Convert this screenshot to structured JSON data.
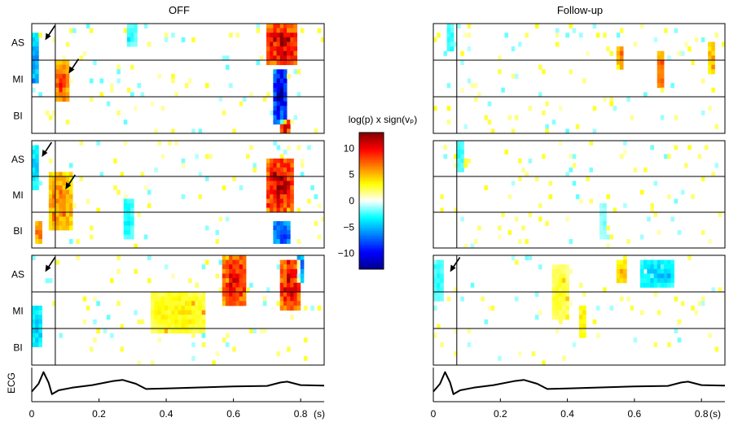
{
  "chart_data": {
    "type": "heatmap",
    "columns": [
      {
        "title": "OFF",
        "panels": [
          {
            "row_labels": [
              "AS",
              "MI",
              "BI"
            ],
            "cursor_time_s": 0.07,
            "arrows": [
              {
                "t": 0.04,
                "region": "AS"
              },
              {
                "t": 0.11,
                "region": "MI"
              }
            ],
            "blobs": [
              {
                "t": [
                  0.07,
                  0.11
                ],
                "rows": [
                  0.35,
                  0.72
                ],
                "value": 9
              },
              {
                "t": [
                  0.7,
                  0.79
                ],
                "rows": [
                  0.0,
                  0.38
                ],
                "value": 12
              },
              {
                "t": [
                  0.72,
                  0.76
                ],
                "rows": [
                  0.42,
                  0.9
                ],
                "value": -12
              },
              {
                "t": [
                  0.74,
                  0.77
                ],
                "rows": [
                  0.88,
                  1.0
                ],
                "value": 12
              },
              {
                "t": [
                  0.0,
                  0.02
                ],
                "rows": [
                  0.1,
                  0.55
                ],
                "value": -7
              },
              {
                "t": [
                  0.28,
                  0.31
                ],
                "rows": [
                  0.0,
                  0.2
                ],
                "value": -3
              }
            ]
          },
          {
            "row_labels": [
              "AS",
              "MI",
              "BI"
            ],
            "cursor_time_s": 0.07,
            "arrows": [
              {
                "t": 0.03,
                "region": "AS"
              },
              {
                "t": 0.1,
                "region": "MI"
              }
            ],
            "blobs": [
              {
                "t": [
                  0.05,
                  0.12
                ],
                "rows": [
                  0.3,
                  0.85
                ],
                "value": 7
              },
              {
                "t": [
                  0.7,
                  0.78
                ],
                "rows": [
                  0.18,
                  0.65
                ],
                "value": 12
              },
              {
                "t": [
                  0.72,
                  0.77
                ],
                "rows": [
                  0.75,
                  0.95
                ],
                "value": -10
              },
              {
                "t": [
                  0.01,
                  0.03
                ],
                "rows": [
                  0.75,
                  0.95
                ],
                "value": 8
              },
              {
                "t": [
                  0.0,
                  0.02
                ],
                "rows": [
                  0.05,
                  0.45
                ],
                "value": -5
              },
              {
                "t": [
                  0.27,
                  0.3
                ],
                "rows": [
                  0.55,
                  0.9
                ],
                "value": -4
              }
            ]
          },
          {
            "row_labels": [
              "AS",
              "MI",
              "BI"
            ],
            "cursor_time_s": 0.07,
            "arrows": [
              {
                "t": 0.04,
                "region": "AS"
              }
            ],
            "blobs": [
              {
                "t": [
                  0.57,
                  0.64
                ],
                "rows": [
                  0.0,
                  0.45
                ],
                "value": 11
              },
              {
                "t": [
                  0.74,
                  0.8
                ],
                "rows": [
                  0.05,
                  0.5
                ],
                "value": 11
              },
              {
                "t": [
                  0.79,
                  0.81
                ],
                "rows": [
                  0.0,
                  0.25
                ],
                "value": -8
              },
              {
                "t": [
                  0.0,
                  0.03
                ],
                "rows": [
                  0.45,
                  0.85
                ],
                "value": -5
              },
              {
                "t": [
                  0.35,
                  0.52
                ],
                "rows": [
                  0.35,
                  0.7
                ],
                "value": 4
              }
            ]
          }
        ],
        "ecg": [
          [
            0,
            0.2
          ],
          [
            0.02,
            0.5
          ],
          [
            0.035,
            0.95
          ],
          [
            0.05,
            0.55
          ],
          [
            0.06,
            0.1
          ],
          [
            0.08,
            0.25
          ],
          [
            0.12,
            0.35
          ],
          [
            0.18,
            0.45
          ],
          [
            0.24,
            0.6
          ],
          [
            0.27,
            0.65
          ],
          [
            0.31,
            0.5
          ],
          [
            0.34,
            0.3
          ],
          [
            0.4,
            0.32
          ],
          [
            0.5,
            0.36
          ],
          [
            0.6,
            0.4
          ],
          [
            0.7,
            0.42
          ],
          [
            0.74,
            0.55
          ],
          [
            0.76,
            0.58
          ],
          [
            0.8,
            0.45
          ],
          [
            0.87,
            0.43
          ]
        ]
      },
      {
        "title": "Follow-up",
        "panels": [
          {
            "row_labels": [
              "AS",
              "MI",
              "BI"
            ],
            "cursor_time_s": 0.07,
            "arrows": [],
            "blobs": [
              {
                "t": [
                  0.67,
                  0.69
                ],
                "rows": [
                  0.25,
                  0.6
                ],
                "value": 9
              },
              {
                "t": [
                  0.55,
                  0.57
                ],
                "rows": [
                  0.2,
                  0.4
                ],
                "value": 7
              },
              {
                "t": [
                  0.82,
                  0.84
                ],
                "rows": [
                  0.15,
                  0.45
                ],
                "value": 6
              },
              {
                "t": [
                  0.04,
                  0.06
                ],
                "rows": [
                  0.0,
                  0.25
                ],
                "value": -3
              },
              {
                "t": [
                  0.87,
                  0.88
                ],
                "rows": [
                  0.4,
                  0.9
                ],
                "value": 5
              }
            ]
          },
          {
            "row_labels": [
              "AS",
              "MI",
              "BI"
            ],
            "cursor_time_s": 0.07,
            "arrows": [],
            "blobs": [
              {
                "t": [
                  0.07,
                  0.09
                ],
                "rows": [
                  0.0,
                  0.3
                ],
                "value": -3
              },
              {
                "t": [
                  0.5,
                  0.52
                ],
                "rows": [
                  0.6,
                  0.9
                ],
                "value": -2
              }
            ]
          },
          {
            "row_labels": [
              "AS",
              "MI",
              "BI"
            ],
            "cursor_time_s": 0.07,
            "arrows": [
              {
                "t": 0.05,
                "region": "AS"
              }
            ],
            "blobs": [
              {
                "t": [
                  0.62,
                  0.72
                ],
                "rows": [
                  0.05,
                  0.3
                ],
                "value": -5
              },
              {
                "t": [
                  0.55,
                  0.58
                ],
                "rows": [
                  0.05,
                  0.25
                ],
                "value": 6
              },
              {
                "t": [
                  0.35,
                  0.4
                ],
                "rows": [
                  0.1,
                  0.6
                ],
                "value": 3
              },
              {
                "t": [
                  0.43,
                  0.46
                ],
                "rows": [
                  0.45,
                  0.75
                ],
                "value": 4
              },
              {
                "t": [
                  0.0,
                  0.03
                ],
                "rows": [
                  0.05,
                  0.4
                ],
                "value": -3
              }
            ]
          }
        ],
        "ecg": [
          [
            0,
            0.2
          ],
          [
            0.02,
            0.5
          ],
          [
            0.035,
            0.95
          ],
          [
            0.05,
            0.55
          ],
          [
            0.06,
            0.1
          ],
          [
            0.08,
            0.25
          ],
          [
            0.12,
            0.35
          ],
          [
            0.18,
            0.45
          ],
          [
            0.24,
            0.6
          ],
          [
            0.27,
            0.65
          ],
          [
            0.31,
            0.5
          ],
          [
            0.34,
            0.3
          ],
          [
            0.4,
            0.32
          ],
          [
            0.5,
            0.36
          ],
          [
            0.6,
            0.4
          ],
          [
            0.7,
            0.42
          ],
          [
            0.74,
            0.55
          ],
          [
            0.76,
            0.58
          ],
          [
            0.8,
            0.45
          ],
          [
            0.87,
            0.43
          ]
        ]
      }
    ],
    "ecg_label": "ECG",
    "x_ticks": [
      0,
      0.2,
      0.4,
      0.6,
      0.8
    ],
    "x_unit": "(s)",
    "xlim": [
      0,
      0.87
    ],
    "colorbar": {
      "label": "log(p) x sign(vₚ)",
      "ticks": [
        10,
        5,
        0,
        -5,
        -10
      ],
      "tick_labels": [
        "10",
        "5",
        "0",
        "−5",
        "−10"
      ],
      "range": [
        -13,
        13
      ],
      "colormap": [
        "#00008f",
        "#0000ff",
        "#0080ff",
        "#00ffff",
        "#ffffff",
        "#ffff00",
        "#ff8000",
        "#ff0000",
        "#800000"
      ]
    }
  }
}
